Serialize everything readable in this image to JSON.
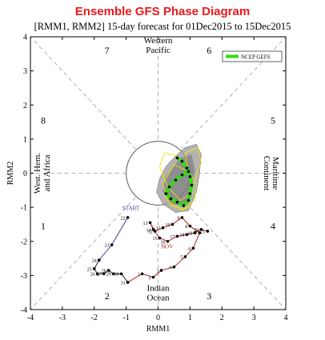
{
  "chart_data": {
    "type": "line",
    "title": "Ensemble GFS Phase Diagram",
    "subtitle": "[RMM1, RMM2] 15-day forecast for 01Dec2015 to 15Dec2015",
    "xlabel": "RMM1",
    "ylabel": "RMM2",
    "xlim": [
      -4,
      4
    ],
    "ylim": [
      -4,
      4
    ],
    "xticks": [
      "-4",
      "-3",
      "-2",
      "-1",
      "0",
      "1",
      "2",
      "3",
      "4"
    ],
    "yticks": [
      "-4",
      "-3",
      "-2",
      "-1",
      "0",
      "1",
      "2",
      "3",
      "4"
    ],
    "grid": "dashed diagonals and axes",
    "legend": {
      "position": "top-right",
      "entries": [
        {
          "label": "NCEP GEFS",
          "color": "#33dd11"
        }
      ]
    },
    "phases": [
      {
        "label": "1",
        "x": -3.6,
        "y": -1.55
      },
      {
        "label": "2",
        "x": -1.6,
        "y": -3.6
      },
      {
        "label": "3",
        "x": 1.6,
        "y": -3.6
      },
      {
        "label": "4",
        "x": 3.6,
        "y": -1.55
      },
      {
        "label": "5",
        "x": 3.6,
        "y": 1.55
      },
      {
        "label": "6",
        "x": 1.6,
        "y": 3.6
      },
      {
        "label": "7",
        "x": -1.6,
        "y": 3.6
      },
      {
        "label": "8",
        "x": -3.6,
        "y": 1.55
      }
    ],
    "regions": [
      {
        "label": "Western Pacific",
        "position": "top"
      },
      {
        "label": "Maritime Continent",
        "position": "right"
      },
      {
        "label": "Indian Ocean",
        "position": "bottom"
      },
      {
        "label": "West. Hem. and Africa",
        "position": "left"
      }
    ],
    "annotations": [
      {
        "label": "START",
        "x": -0.85,
        "y": -1.08
      },
      {
        "label": "NOV",
        "x": 0.28,
        "y": -2.2
      }
    ],
    "series": [
      {
        "name": "Observed RMM (purple segment)",
        "color": "#5a2d9e",
        "points": [
          {
            "x": -0.95,
            "y": -1.3,
            "label": "22"
          },
          {
            "x": -1.45,
            "y": -2.1,
            "label": "23"
          },
          {
            "x": -1.85,
            "y": -2.55,
            "label": "24"
          }
        ]
      },
      {
        "name": "Observed RMM (dark segment)",
        "color": "#222222",
        "points": [
          {
            "x": -1.85,
            "y": -2.55
          },
          {
            "x": -2.0,
            "y": -2.8,
            "label": "25"
          },
          {
            "x": -1.9,
            "y": -2.95,
            "label": "26"
          },
          {
            "x": -1.7,
            "y": -2.95,
            "label": "27"
          },
          {
            "x": -1.55,
            "y": -2.85,
            "label": "28"
          },
          {
            "x": -1.4,
            "y": -2.95,
            "label": "29"
          },
          {
            "x": -1.15,
            "y": -2.95,
            "label": "30"
          },
          {
            "x": -0.95,
            "y": -3.2,
            "label": "31"
          }
        ]
      },
      {
        "name": "Observed RMM (red segment)",
        "color": "#b51c1c",
        "points": [
          {
            "x": -0.95,
            "y": -3.2
          },
          {
            "x": -0.5,
            "y": -2.95,
            "label": "1"
          },
          {
            "x": -0.15,
            "y": -3.05,
            "label": "2"
          },
          {
            "x": 0.1,
            "y": -2.85,
            "label": "3"
          },
          {
            "x": 0.5,
            "y": -2.75,
            "label": "4"
          },
          {
            "x": 0.85,
            "y": -2.45,
            "label": "5"
          },
          {
            "x": 1.1,
            "y": -2.2,
            "label": "6"
          },
          {
            "x": 1.3,
            "y": -1.75,
            "label": "7"
          },
          {
            "x": 1.0,
            "y": -1.55,
            "label": "8"
          },
          {
            "x": 0.75,
            "y": -1.3,
            "label": "9"
          },
          {
            "x": 0.45,
            "y": -1.5,
            "label": "10"
          },
          {
            "x": 0.15,
            "y": -1.6,
            "label": "11"
          },
          {
            "x": -0.1,
            "y": -1.7,
            "label": "12"
          },
          {
            "x": -0.25,
            "y": -1.45,
            "label": "13"
          },
          {
            "x": -0.15,
            "y": -1.65,
            "label": "14"
          },
          {
            "x": 0.05,
            "y": -1.9,
            "label": "15"
          },
          {
            "x": 0.3,
            "y": -2.0,
            "label": "16"
          },
          {
            "x": 0.6,
            "y": -1.85,
            "label": "17"
          },
          {
            "x": 0.9,
            "y": -1.8,
            "label": "18"
          },
          {
            "x": 1.15,
            "y": -1.75,
            "label": "19"
          },
          {
            "x": 1.35,
            "y": -1.65,
            "label": "20"
          },
          {
            "x": 1.55,
            "y": -1.7,
            "label": "21"
          }
        ]
      },
      {
        "name": "NCEP GEFS ensemble mean",
        "color": "#33dd11",
        "points": [
          {
            "x": 0.95,
            "y": 0.05
          },
          {
            "x": 0.75,
            "y": -0.05
          },
          {
            "x": 0.55,
            "y": -0.2
          },
          {
            "x": 0.35,
            "y": -0.4
          },
          {
            "x": 0.25,
            "y": -0.6
          },
          {
            "x": 0.4,
            "y": -0.75
          },
          {
            "x": 0.6,
            "y": -0.85
          },
          {
            "x": 0.8,
            "y": -0.95
          },
          {
            "x": 0.95,
            "y": -0.8
          },
          {
            "x": 1.0,
            "y": -0.6
          },
          {
            "x": 1.05,
            "y": -0.35
          },
          {
            "x": 1.0,
            "y": -0.1
          },
          {
            "x": 0.9,
            "y": 0.15
          },
          {
            "x": 0.75,
            "y": 0.35
          },
          {
            "x": 0.6,
            "y": 0.45
          }
        ]
      }
    ]
  }
}
